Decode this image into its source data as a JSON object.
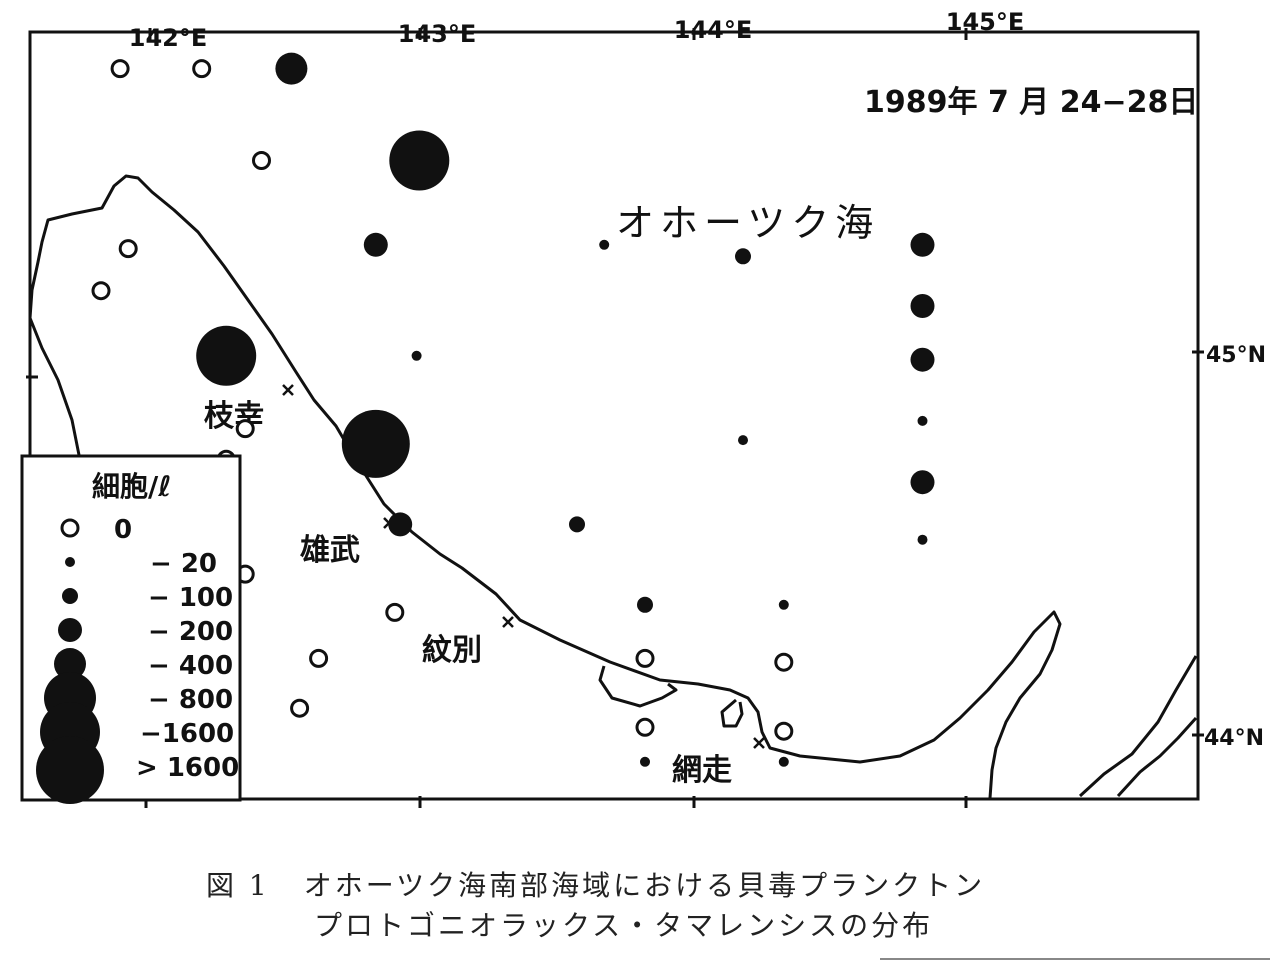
{
  "map": {
    "date_label": "1989年 7 月 24−28日",
    "sea_label": "オホーツク海",
    "longitude_ticks": [
      "142°E",
      "143°E",
      "144°E",
      "145°E"
    ],
    "latitude_ticks": [
      "45°N",
      "44°N"
    ],
    "places": [
      "枝幸",
      "雄武",
      "紋別",
      "網走"
    ]
  },
  "legend": {
    "title": "細胞/ℓ",
    "entries": [
      "0",
      "− 20",
      "− 100",
      "− 200",
      "− 400",
      "− 800",
      "−1600",
      "> 1600"
    ]
  },
  "caption": {
    "figure_number": "図 1",
    "line1": "オホーツク海南部海域における貝毒プランクトン",
    "line2": "プロトゴニオラックス・タマレンシスの分布"
  },
  "stations": [
    {
      "lon": 141.89,
      "lat": 45.74,
      "class": 0
    },
    {
      "lon": 142.19,
      "lat": 45.74,
      "class": 0
    },
    {
      "lon": 142.52,
      "lat": 45.74,
      "class": 4
    },
    {
      "lon": 142.41,
      "lat": 45.5,
      "class": 0
    },
    {
      "lon": 142.99,
      "lat": 45.5,
      "class": 6
    },
    {
      "lon": 141.92,
      "lat": 45.27,
      "class": 0
    },
    {
      "lon": 142.83,
      "lat": 45.28,
      "class": 3
    },
    {
      "lon": 143.67,
      "lat": 45.28,
      "class": 1
    },
    {
      "lon": 144.18,
      "lat": 45.25,
      "class": 2
    },
    {
      "lon": 141.82,
      "lat": 45.16,
      "class": 0
    },
    {
      "lon": 142.28,
      "lat": 44.99,
      "class": 6
    },
    {
      "lon": 142.98,
      "lat": 44.99,
      "class": 1
    },
    {
      "lon": 142.35,
      "lat": 44.8,
      "class": 0
    },
    {
      "lon": 142.83,
      "lat": 44.76,
      "class": 7
    },
    {
      "lon": 144.18,
      "lat": 44.77,
      "class": 1
    },
    {
      "lon": 142.28,
      "lat": 44.72,
      "class": 0
    },
    {
      "lon": 142.92,
      "lat": 44.55,
      "class": 3
    },
    {
      "lon": 143.57,
      "lat": 44.55,
      "class": 2
    },
    {
      "lon": 142.35,
      "lat": 44.42,
      "class": 0
    },
    {
      "lon": 142.27,
      "lat": 44.32,
      "class": 0
    },
    {
      "lon": 142.9,
      "lat": 44.32,
      "class": 0
    },
    {
      "lon": 143.82,
      "lat": 44.34,
      "class": 2
    },
    {
      "lon": 144.33,
      "lat": 44.34,
      "class": 1
    },
    {
      "lon": 142.62,
      "lat": 44.2,
      "class": 0
    },
    {
      "lon": 143.82,
      "lat": 44.2,
      "class": 0
    },
    {
      "lon": 144.33,
      "lat": 44.19,
      "class": 0
    },
    {
      "lon": 142.55,
      "lat": 44.07,
      "class": 0
    },
    {
      "lon": 143.82,
      "lat": 44.02,
      "class": 0
    },
    {
      "lon": 144.33,
      "lat": 44.01,
      "class": 0
    },
    {
      "lon": 143.82,
      "lat": 43.93,
      "class": 1
    },
    {
      "lon": 144.33,
      "lat": 43.93,
      "class": 1
    },
    {
      "lon": 144.84,
      "lat": 45.28,
      "class": 3
    },
    {
      "lon": 144.84,
      "lat": 45.12,
      "class": 3
    },
    {
      "lon": 144.84,
      "lat": 44.98,
      "class": 3
    },
    {
      "lon": 144.84,
      "lat": 44.82,
      "class": 1
    },
    {
      "lon": 144.84,
      "lat": 44.66,
      "class": 3
    },
    {
      "lon": 144.84,
      "lat": 44.51,
      "class": 1
    }
  ]
}
